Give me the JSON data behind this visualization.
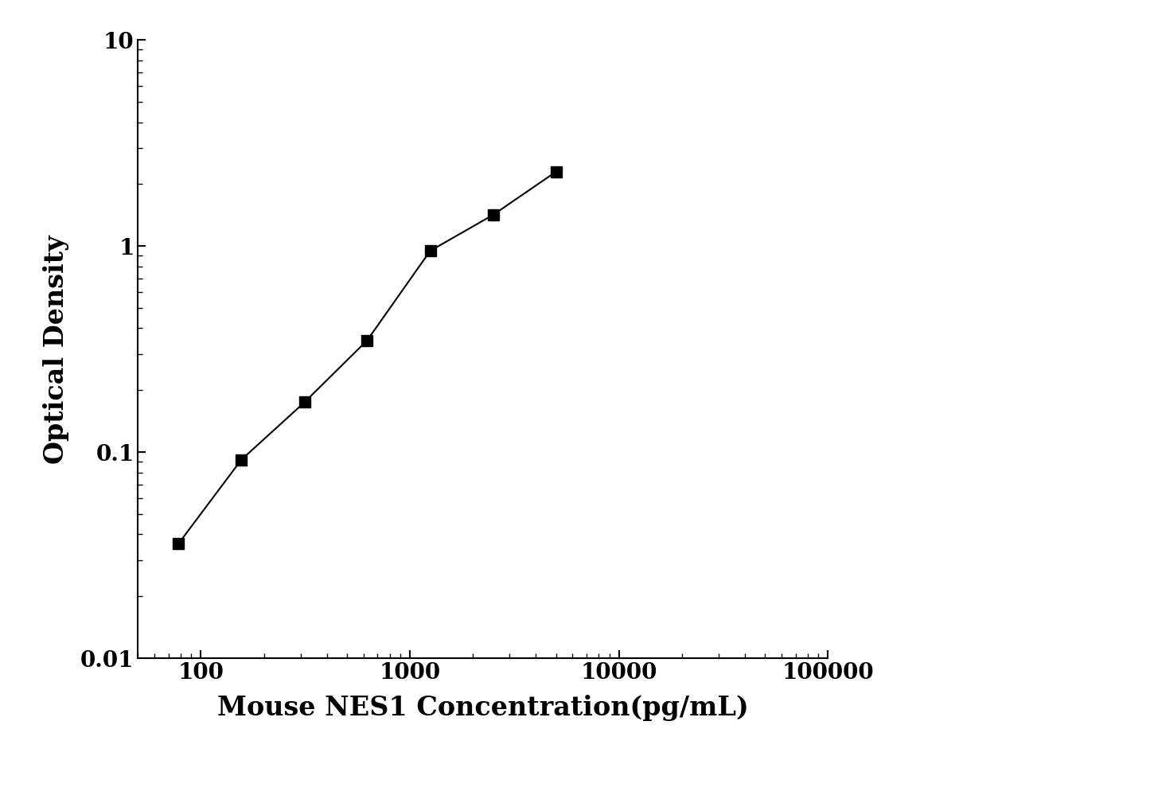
{
  "x_values": [
    78,
    156,
    313,
    625,
    1250,
    2500,
    5000
  ],
  "y_values": [
    0.036,
    0.092,
    0.175,
    0.35,
    0.95,
    1.42,
    2.3
  ],
  "xlabel": "Mouse NES1 Concentration(pg/mL)",
  "ylabel": "Optical Density",
  "xlim": [
    50,
    100000
  ],
  "ylim": [
    0.01,
    10
  ],
  "line_color": "#000000",
  "marker": "s",
  "marker_color": "#000000",
  "marker_size": 10,
  "line_width": 1.5,
  "xlabel_fontsize": 24,
  "ylabel_fontsize": 24,
  "tick_fontsize": 20,
  "background_color": "#ffffff",
  "x_ticks": [
    100,
    1000,
    10000,
    100000
  ],
  "y_ticks": [
    0.01,
    0.1,
    1,
    10
  ]
}
